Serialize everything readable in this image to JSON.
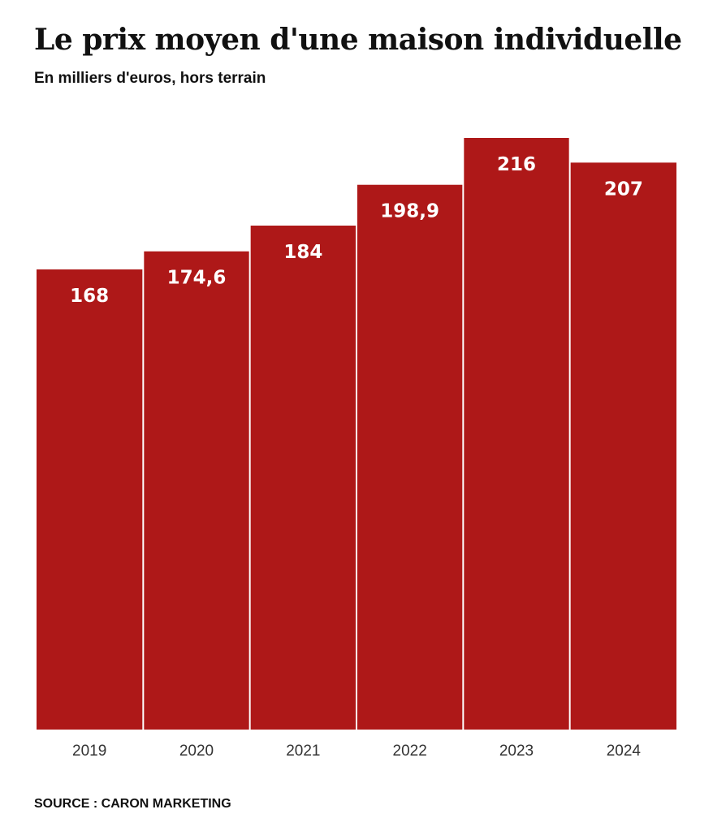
{
  "chart_data": {
    "type": "bar",
    "title": "Le prix moyen d'une maison individuelle",
    "subtitle": "En milliers d'euros, hors terrain",
    "categories": [
      "2019",
      "2020",
      "2021",
      "2022",
      "2023",
      "2024"
    ],
    "values": [
      168,
      174.6,
      184,
      198.9,
      216,
      207
    ],
    "value_labels": [
      "168",
      "174,6",
      "184",
      "198,9",
      "216",
      "207"
    ],
    "xlabel": "",
    "ylabel": "",
    "ylim": [
      0,
      216
    ],
    "grid": false,
    "legend": "none",
    "bar_color": "#ae1818",
    "label_color": "#ffffff"
  },
  "source": "SOURCE : CARON MARKETING"
}
